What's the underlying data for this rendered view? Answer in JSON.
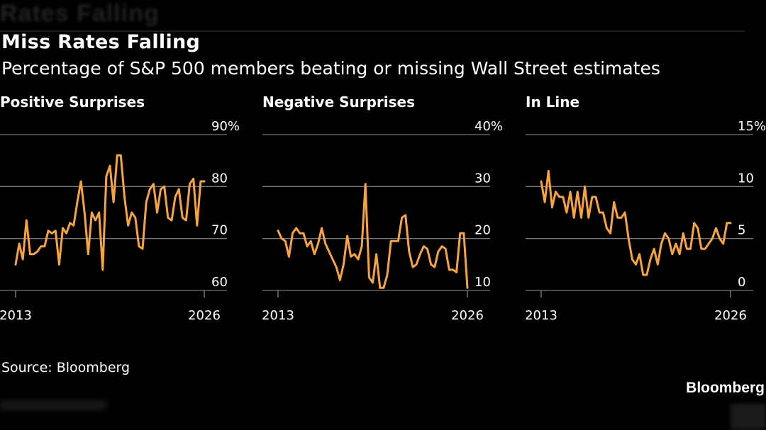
{
  "header": {
    "title": "Miss Rates Falling",
    "subtitle": "Percentage of S&P 500 members beating or missing Wall Street estimates"
  },
  "footer": {
    "source": "Source: Bloomberg",
    "brand": "Bloomberg"
  },
  "colors": {
    "line": "#f9a43a",
    "grid": "#777777",
    "text": "#ffffff",
    "background": "#000000"
  },
  "chart_data": [
    {
      "type": "line",
      "title": "Positive Surprises",
      "x_tick_labels": [
        "2013",
        "2026"
      ],
      "x_range": [
        2013,
        2026
      ],
      "ylim": [
        60,
        90
      ],
      "y_ticks": [
        60,
        70,
        80,
        90
      ],
      "y_tick_labels": [
        "60",
        "70",
        "80",
        "90%"
      ],
      "grid": true,
      "series": [
        {
          "x": [
            2013,
            2013.25,
            2013.5,
            2013.75,
            2014,
            2014.25,
            2014.5,
            2014.75,
            2015,
            2015.25,
            2015.5,
            2015.75,
            2016,
            2016.25,
            2016.5,
            2016.75,
            2017,
            2017.25,
            2017.5,
            2017.75,
            2018,
            2018.25,
            2018.5,
            2018.75,
            2019,
            2019.25,
            2019.5,
            2019.75,
            2020,
            2020.25,
            2020.5,
            2020.75,
            2021,
            2021.25,
            2021.5,
            2021.75,
            2022,
            2022.25,
            2022.5,
            2022.75,
            2023,
            2023.25,
            2023.5,
            2023.75,
            2024,
            2024.25,
            2024.5,
            2024.75,
            2025,
            2025.25,
            2025.5,
            2025.75,
            2026
          ],
          "values": [
            65,
            69,
            66,
            73.5,
            67,
            67,
            67.5,
            68.5,
            68.5,
            71.5,
            71,
            71.5,
            65,
            72,
            71,
            73,
            72.5,
            77,
            81,
            75,
            67,
            75,
            73.5,
            75,
            64,
            82,
            84,
            77,
            86,
            86,
            78,
            72.5,
            75,
            74,
            68.5,
            68,
            77,
            79.5,
            80.5,
            75,
            79.5,
            80,
            74,
            73.5,
            78,
            79.5,
            74,
            73.5,
            80.5,
            81.5,
            72.5,
            81,
            81
          ]
        }
      ]
    },
    {
      "type": "line",
      "title": "Negative Surprises",
      "x_tick_labels": [
        "2013",
        "2026"
      ],
      "x_range": [
        2013,
        2026
      ],
      "ylim": [
        10,
        40
      ],
      "y_ticks": [
        10,
        20,
        30,
        40
      ],
      "y_tick_labels": [
        "10",
        "20",
        "30",
        "40%"
      ],
      "grid": true,
      "series": [
        {
          "x": [
            2013,
            2013.25,
            2013.5,
            2013.75,
            2014,
            2014.25,
            2014.5,
            2014.75,
            2015,
            2015.25,
            2015.5,
            2015.75,
            2016,
            2016.25,
            2016.5,
            2016.75,
            2017,
            2017.25,
            2017.5,
            2017.75,
            2018,
            2018.25,
            2018.5,
            2018.75,
            2019,
            2019.25,
            2019.5,
            2019.75,
            2020,
            2020.25,
            2020.5,
            2020.75,
            2021,
            2021.25,
            2021.5,
            2021.75,
            2022,
            2022.25,
            2022.5,
            2022.75,
            2023,
            2023.25,
            2023.5,
            2023.75,
            2024,
            2024.25,
            2024.5,
            2024.75,
            2025,
            2025.25,
            2025.5,
            2025.75,
            2026
          ],
          "values": [
            21.5,
            20,
            19.5,
            16.5,
            21,
            22,
            21,
            21,
            18.5,
            19.5,
            17,
            19,
            22,
            19,
            17.5,
            16,
            14.5,
            12,
            15,
            20.5,
            16.5,
            17,
            16,
            18.5,
            30.5,
            12.5,
            11.5,
            17,
            10.5,
            10.5,
            13,
            19.5,
            19.5,
            19.5,
            24,
            24.5,
            17.5,
            14.5,
            15,
            17,
            18.5,
            18,
            15,
            14.5,
            17.5,
            18.5,
            18,
            14,
            14,
            13.5,
            21,
            21,
            10.5
          ]
        }
      ]
    },
    {
      "type": "line",
      "title": "In Line",
      "x_tick_labels": [
        "2013",
        "2026"
      ],
      "x_range": [
        2013,
        2026
      ],
      "ylim": [
        0,
        15
      ],
      "y_ticks": [
        0,
        5,
        10,
        15
      ],
      "y_tick_labels": [
        "0",
        "5",
        "10",
        "15%"
      ],
      "grid": true,
      "series": [
        {
          "x": [
            2013,
            2013.25,
            2013.5,
            2013.75,
            2014,
            2014.25,
            2014.5,
            2014.75,
            2015,
            2015.25,
            2015.5,
            2015.75,
            2016,
            2016.25,
            2016.5,
            2016.75,
            2017,
            2017.25,
            2017.5,
            2017.75,
            2018,
            2018.25,
            2018.5,
            2018.75,
            2019,
            2019.25,
            2019.5,
            2019.75,
            2020,
            2020.25,
            2020.5,
            2020.75,
            2021,
            2021.25,
            2021.5,
            2021.75,
            2022,
            2022.25,
            2022.5,
            2022.75,
            2023,
            2023.25,
            2023.5,
            2023.75,
            2024,
            2024.25,
            2024.5,
            2024.75,
            2025,
            2025.25,
            2025.5,
            2025.75,
            2026
          ],
          "values": [
            10.5,
            8.5,
            11.5,
            8,
            9.5,
            9,
            9,
            7.5,
            9.5,
            7,
            9.5,
            7,
            10,
            7,
            9,
            9,
            7.5,
            7.5,
            6,
            5.5,
            8.5,
            7,
            7,
            7.5,
            5,
            3,
            2.5,
            3.5,
            1.5,
            1.5,
            3,
            4,
            2.5,
            4.5,
            5.5,
            5,
            3.5,
            4.5,
            3.5,
            5.5,
            4,
            4,
            6.5,
            6,
            4,
            4,
            4.5,
            5,
            6,
            5,
            4.5,
            6.5,
            6.5
          ]
        }
      ]
    }
  ]
}
